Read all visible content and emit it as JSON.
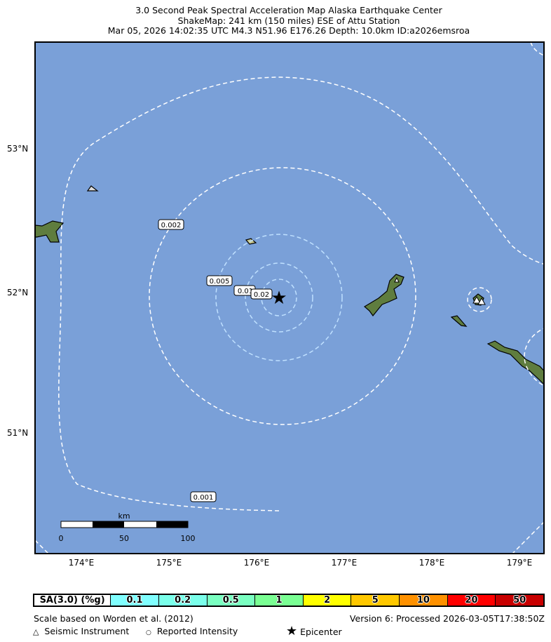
{
  "header": {
    "line1": "3.0 Second Peak Spectral Acceleration Map Alaska Earthquake Center",
    "line2": "ShakeMap: 241 km (150 miles) ESE of Attu Station",
    "line3": "Mar 05, 2026 14:02:35 UTC M4.3 N51.96 E176.26 Depth: 10.0km ID:a2026emsroa"
  },
  "map": {
    "water_color": "#7aa0d8",
    "land_color": "#5f7d3f",
    "lat_labels": [
      "53°N",
      "52°N",
      "51°N"
    ],
    "lon_labels": [
      "174°E",
      "175°E",
      "176°E",
      "177°E",
      "178°E",
      "179°E"
    ],
    "contour_labels": [
      "0.002",
      "0.005",
      "0.01",
      "0.02",
      "0.001"
    ],
    "scalebar": {
      "unit": "km",
      "ticks": [
        "0",
        "50",
        "100"
      ]
    },
    "epicenter_icon": "star-icon"
  },
  "legend": {
    "title": "SA(3.0) (%g)",
    "bins": [
      {
        "label": "0.1",
        "color": "#80ffff"
      },
      {
        "label": "0.2",
        "color": "#7affea"
      },
      {
        "label": "0.5",
        "color": "#7affc1"
      },
      {
        "label": "1",
        "color": "#7aff93"
      },
      {
        "label": "2",
        "color": "#ffff00"
      },
      {
        "label": "5",
        "color": "#ffc800"
      },
      {
        "label": "10",
        "color": "#ff9100"
      },
      {
        "label": "20",
        "color": "#ff0000"
      },
      {
        "label": "50",
        "color": "#c80000"
      }
    ],
    "scale_note": "Scale based on Worden et al. (2012)",
    "version": "Version 6: Processed 2026-03-05T17:38:50Z",
    "seismic_instrument": "Seismic Instrument",
    "reported_intensity": "Reported Intensity",
    "epicenter": "Epicenter"
  }
}
